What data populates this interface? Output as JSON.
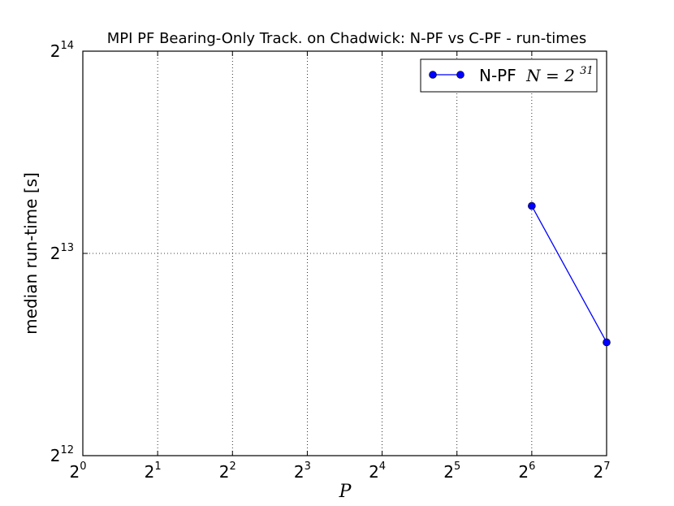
{
  "chart_data": {
    "type": "line",
    "title": "MPI PF Bearing-Only Track. on Chadwick: N-PF vs C-PF - run-times",
    "xlabel": "P",
    "ylabel": "median run-time [s]",
    "x_scale": "log2",
    "y_scale": "log2",
    "xlim": [
      1,
      128
    ],
    "ylim": [
      4096,
      16384
    ],
    "x_ticks": [
      {
        "base": "2",
        "exp": "0"
      },
      {
        "base": "2",
        "exp": "1"
      },
      {
        "base": "2",
        "exp": "2"
      },
      {
        "base": "2",
        "exp": "3"
      },
      {
        "base": "2",
        "exp": "4"
      },
      {
        "base": "2",
        "exp": "5"
      },
      {
        "base": "2",
        "exp": "6"
      },
      {
        "base": "2",
        "exp": "7"
      }
    ],
    "y_ticks": [
      {
        "base": "2",
        "exp": "12"
      },
      {
        "base": "2",
        "exp": "13"
      },
      {
        "base": "2",
        "exp": "14"
      }
    ],
    "grid": true,
    "legend_position": "top-right",
    "series": [
      {
        "name": "N-PF",
        "name_math": "N = 2",
        "name_math_exp": "31",
        "color": "#0000ff",
        "x": [
          64,
          128
        ],
        "y": [
          9640,
          6040
        ]
      }
    ]
  }
}
